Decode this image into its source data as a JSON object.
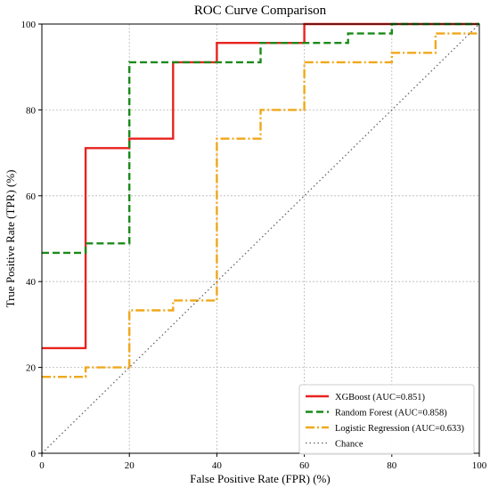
{
  "chart_data": {
    "type": "line",
    "title": "ROC Curve Comparison",
    "xlabel": "False Positive Rate (FPR) (%)",
    "ylabel": "True Positive Rate (TPR) (%)",
    "xlim": [
      0,
      100
    ],
    "ylim": [
      0,
      100
    ],
    "xticks": [
      "0",
      "20",
      "40",
      "60",
      "80",
      "100"
    ],
    "yticks": [
      "0",
      "20",
      "40",
      "60",
      "80",
      "100"
    ],
    "grid": true,
    "legend_position": "lower-right",
    "series": [
      {
        "name": "XGBoost (AUC=0.851)",
        "color": "#e8231f",
        "style": "solid",
        "x": [
          0,
          10,
          10,
          20,
          20,
          30,
          30,
          40,
          40,
          60,
          60,
          100
        ],
        "y": [
          24.5,
          24.5,
          71.1,
          71.1,
          73.3,
          73.3,
          91.1,
          91.1,
          95.6,
          95.6,
          100,
          100
        ]
      },
      {
        "name": "Random Forest (AUC=0.858)",
        "color": "#1a8a1a",
        "style": "dashed",
        "x": [
          0,
          10,
          10,
          20,
          20,
          50,
          50,
          70,
          70,
          80,
          80,
          100
        ],
        "y": [
          46.7,
          46.7,
          48.9,
          48.9,
          91.1,
          91.1,
          95.6,
          95.6,
          97.8,
          97.8,
          100,
          100
        ]
      },
      {
        "name": "Logistic Regression (AUC=0.633)",
        "color": "#f0a81a",
        "style": "dashdot",
        "x": [
          0,
          10,
          10,
          20,
          20,
          30,
          30,
          40,
          40,
          50,
          50,
          60,
          60,
          80,
          80,
          90,
          90,
          100
        ],
        "y": [
          17.8,
          17.8,
          20,
          20,
          33.3,
          33.3,
          35.6,
          35.6,
          73.3,
          73.3,
          80,
          80,
          91.1,
          91.1,
          93.3,
          93.3,
          97.8,
          97.8
        ]
      },
      {
        "name": "Chance",
        "color": "#666666",
        "style": "dotted",
        "x": [
          0,
          100
        ],
        "y": [
          0,
          100
        ]
      }
    ]
  }
}
